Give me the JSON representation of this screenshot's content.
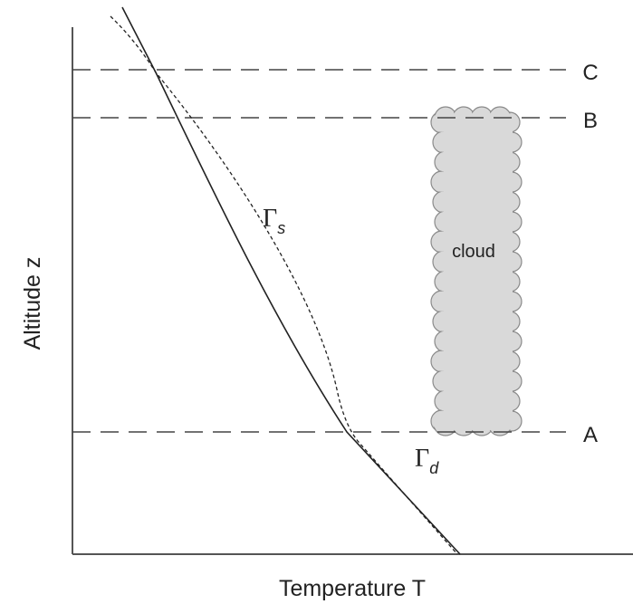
{
  "axes": {
    "y_label": "Altitude z",
    "x_label": "Temperature T"
  },
  "levels": [
    {
      "label": "C"
    },
    {
      "label": "B"
    },
    {
      "label": "A"
    }
  ],
  "cloud": {
    "label": "cloud"
  },
  "curves": [
    {
      "symbol": "Γ",
      "subscript": "s"
    },
    {
      "symbol": "Γ",
      "subscript": "d"
    }
  ]
}
